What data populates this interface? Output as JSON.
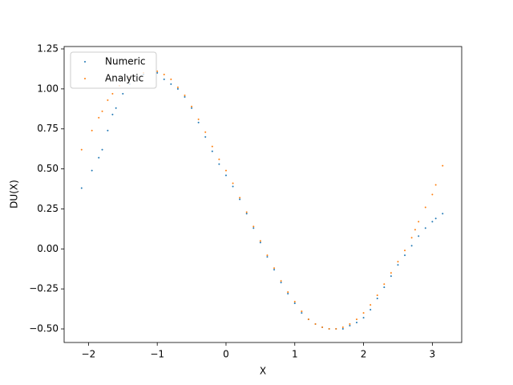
{
  "chart_data": {
    "type": "scatter",
    "x_label": "X",
    "y_label": "DU(X)",
    "xlim": [
      -2.354,
      3.427
    ],
    "ylim": [
      -0.585,
      1.265
    ],
    "xticks": [
      {
        "value": -2,
        "label": "−2"
      },
      {
        "value": -1,
        "label": "−1"
      },
      0,
      1,
      2,
      3
    ],
    "yticks": [
      {
        "value": -0.5,
        "label": "−0.50"
      },
      {
        "value": -0.25,
        "label": "−0.25"
      },
      {
        "value": 0,
        "label": "0.00"
      },
      0.25,
      {
        "value": 0.5,
        "label": "0.50"
      },
      0.75,
      {
        "value": 1,
        "label": "1.00"
      },
      1.25
    ],
    "legend": "upper left",
    "series": [
      {
        "name": "Numeric",
        "color": "#1f77b4",
        "x": [
          -2.1,
          -1.95,
          -1.85,
          -1.8,
          -1.72,
          -1.65,
          -1.6,
          -1.5,
          -1.4,
          -1.2,
          -1.0,
          -0.9,
          -0.8,
          -0.7,
          -0.6,
          -0.5,
          -0.4,
          -0.3,
          -0.2,
          -0.1,
          0,
          0.1,
          0.2,
          0.3,
          0.4,
          0.5,
          0.6,
          0.7,
          0.8,
          0.9,
          1.0,
          1.1,
          1.2,
          1.3,
          1.4,
          1.5,
          1.6,
          1.7,
          1.8,
          1.9,
          2.0,
          2.1,
          2.2,
          2.3,
          2.4,
          2.5,
          2.6,
          2.7,
          2.8,
          2.9,
          3.0,
          3.05,
          3.15
        ],
        "values": [
          0.38,
          0.49,
          0.57,
          0.62,
          0.74,
          0.84,
          0.88,
          0.97,
          1.03,
          1.09,
          1.1,
          1.06,
          1.03,
          1.0,
          0.95,
          0.88,
          0.79,
          0.7,
          0.61,
          0.53,
          0.46,
          0.39,
          0.31,
          0.22,
          0.13,
          0.04,
          -0.05,
          -0.13,
          -0.21,
          -0.28,
          -0.34,
          -0.4,
          -0.44,
          -0.47,
          -0.49,
          -0.5,
          -0.5,
          -0.5,
          -0.48,
          -0.46,
          -0.43,
          -0.38,
          -0.31,
          -0.24,
          -0.17,
          -0.1,
          -0.04,
          0.02,
          0.08,
          0.13,
          0.17,
          0.19,
          0.22
        ]
      },
      {
        "name": "Analytic",
        "color": "#ff7f0e",
        "x": [
          -2.1,
          -1.95,
          -1.85,
          -1.8,
          -1.72,
          -1.65,
          -1.55,
          -1.4,
          -1.2,
          -1.0,
          -0.9,
          -0.8,
          -0.7,
          -0.6,
          -0.5,
          -0.4,
          -0.3,
          -0.2,
          -0.1,
          0,
          0.1,
          0.2,
          0.3,
          0.4,
          0.5,
          0.6,
          0.7,
          0.8,
          0.9,
          1.0,
          1.1,
          1.2,
          1.3,
          1.4,
          1.5,
          1.6,
          1.7,
          1.8,
          1.9,
          2.0,
          2.1,
          2.2,
          2.3,
          2.4,
          2.5,
          2.6,
          2.7,
          2.75,
          2.8,
          2.9,
          3.0,
          3.05,
          3.15
        ],
        "values": [
          0.62,
          0.74,
          0.82,
          0.86,
          0.93,
          0.97,
          1.02,
          1.07,
          1.1,
          1.11,
          1.09,
          1.06,
          1.01,
          0.96,
          0.89,
          0.81,
          0.73,
          0.64,
          0.56,
          0.49,
          0.41,
          0.32,
          0.23,
          0.14,
          0.05,
          -0.04,
          -0.12,
          -0.2,
          -0.27,
          -0.33,
          -0.39,
          -0.44,
          -0.47,
          -0.49,
          -0.5,
          -0.5,
          -0.49,
          -0.47,
          -0.44,
          -0.4,
          -0.35,
          -0.29,
          -0.22,
          -0.15,
          -0.08,
          -0.01,
          0.07,
          0.12,
          0.17,
          0.26,
          0.34,
          0.4,
          0.52
        ]
      }
    ]
  }
}
